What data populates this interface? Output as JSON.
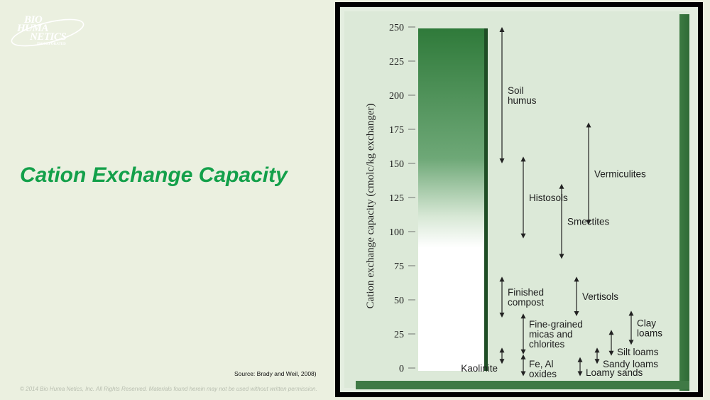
{
  "logo": {
    "line1": "BIO",
    "line2": "HUMA",
    "line3": "NETICS",
    "tagline": "INCORPORATED"
  },
  "slide": {
    "title": "Cation Exchange Capacity",
    "source": "Source:  Brady and Weil, 2008)",
    "copyright": "© 2014 Bio Huma Netics, Inc.  All Rights Reserved. Materials found herein may not be used without written permission."
  },
  "colors": {
    "title": "#13a04a",
    "frame_green": "#3f7a45",
    "bar_top": "#2f7a3a"
  },
  "chart_data": {
    "type": "range",
    "ylabel": "Cation exchange capacity (cmolc/kg exchanger)",
    "ylim": [
      0,
      250
    ],
    "yticks": [
      "250",
      "225",
      "200",
      "175",
      "150",
      "125",
      "100",
      "75",
      "50",
      "25",
      "0"
    ],
    "series": [
      {
        "name": "Soil humus",
        "lines": [
          "Soil",
          "humus"
        ],
        "low": 150,
        "high": 250,
        "col": 0
      },
      {
        "name": "Histosols",
        "lines": [
          "Histosols"
        ],
        "low": 95,
        "high": 155,
        "col": 1
      },
      {
        "name": "Vermiculites",
        "lines": [
          "Vermiculites"
        ],
        "low": 105,
        "high": 180,
        "col": 4
      },
      {
        "name": "Smectites",
        "lines": [
          "Smectites"
        ],
        "low": 80,
        "high": 135,
        "col": 3
      },
      {
        "name": "Finished compost",
        "lines": [
          "Finished",
          "compost"
        ],
        "low": 37,
        "high": 67,
        "col": 0
      },
      {
        "name": "Vertisols",
        "lines": [
          "Vertisols"
        ],
        "low": 38,
        "high": 67,
        "col": 2
      },
      {
        "name": "Fine-grained micas and chlorites",
        "lines": [
          "Fine-grained",
          "micas and",
          "chlorites"
        ],
        "low": 10,
        "high": 40,
        "col": 1
      },
      {
        "name": "Clay loams",
        "lines": [
          "Clay",
          "loams"
        ],
        "low": 17,
        "high": 42,
        "col": 5
      },
      {
        "name": "Silt loams",
        "lines": [
          "Silt loams"
        ],
        "low": 9,
        "high": 28,
        "col": 6
      },
      {
        "name": "Sandy loams",
        "lines": [
          "Sandy loams"
        ],
        "low": 3,
        "high": 15,
        "col": 7
      },
      {
        "name": "Kaolinite",
        "lines": [
          "Kaolinite"
        ],
        "low": 3,
        "high": 15,
        "col": 0
      },
      {
        "name": "Fe, Al oxides",
        "lines": [
          "Fe, Al",
          "oxides"
        ],
        "low": -6,
        "high": 10,
        "col": 1
      },
      {
        "name": "Loamy sands",
        "lines": [
          "Loamy sands"
        ],
        "low": -6,
        "high": 8,
        "col": 8
      }
    ]
  }
}
